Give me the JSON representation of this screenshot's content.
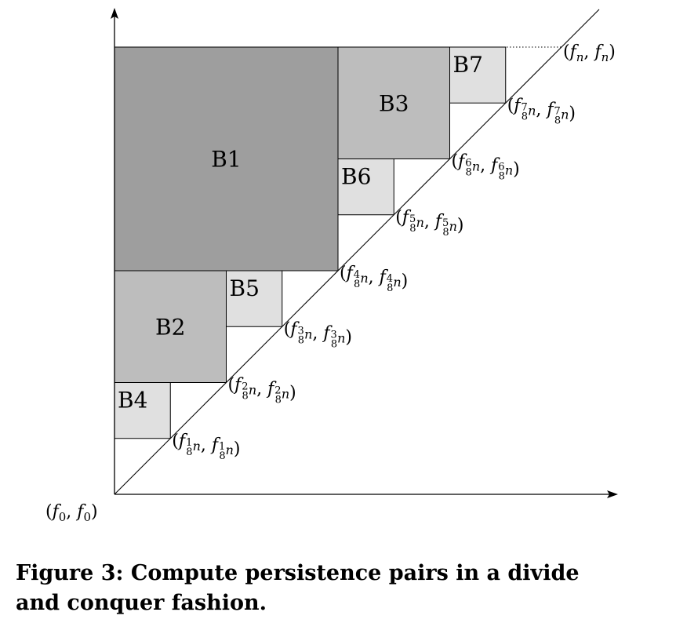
{
  "origin_label": "(f0, f0)",
  "top_label": "(fn, fn)",
  "diagonal_points": [
    {
      "num": "1",
      "den": "8",
      "text": "(f1/8 n, f1/8 n)"
    },
    {
      "num": "2",
      "den": "8",
      "text": "(f2/8 n, f2/8 n)"
    },
    {
      "num": "3",
      "den": "8",
      "text": "(f3/8 n, f3/8 n)"
    },
    {
      "num": "4",
      "den": "8",
      "text": "(f4/8 n, f4/8 n)"
    },
    {
      "num": "5",
      "den": "8",
      "text": "(f5/8 n, f5/8 n)"
    },
    {
      "num": "6",
      "den": "8",
      "text": "(f6/8 n, f6/8 n)"
    },
    {
      "num": "7",
      "den": "8",
      "text": "(f7/8 n, f7/8 n)"
    }
  ],
  "blocks": [
    {
      "label": "B1",
      "x0": 0,
      "x1": 4,
      "y0": 4,
      "y1": 8,
      "color": "#9e9e9e"
    },
    {
      "label": "B2",
      "x0": 0,
      "x1": 2,
      "y0": 2,
      "y1": 4,
      "color": "#bdbdbd"
    },
    {
      "label": "B3",
      "x0": 4,
      "x1": 6,
      "y0": 6,
      "y1": 8,
      "color": "#bdbdbd"
    },
    {
      "label": "B4",
      "x0": 0,
      "x1": 1,
      "y0": 1,
      "y1": 2,
      "color": "#e0e0e0"
    },
    {
      "label": "B5",
      "x0": 2,
      "x1": 3,
      "y0": 3,
      "y1": 4,
      "color": "#e0e0e0"
    },
    {
      "label": "B6",
      "x0": 4,
      "x1": 5,
      "y0": 5,
      "y1": 6,
      "color": "#e0e0e0"
    },
    {
      "label": "B7",
      "x0": 6,
      "x1": 7,
      "y0": 7,
      "y1": 8,
      "color": "#e0e0e0"
    }
  ],
  "caption": {
    "line1": "Figure 3: Compute persistence pairs in a divide",
    "line2": "and conquer fashion."
  }
}
